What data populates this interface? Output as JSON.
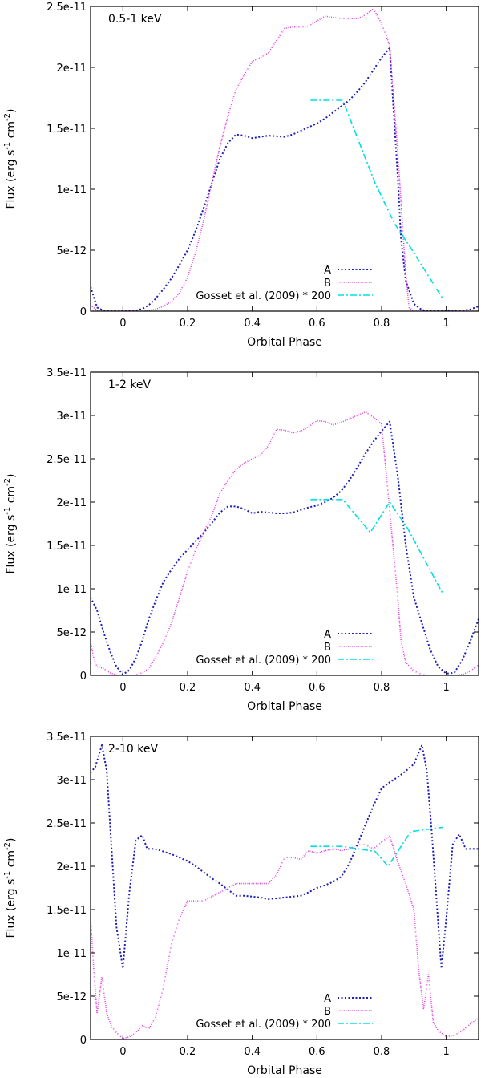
{
  "figure": {
    "xlabel": "Orbital Phase",
    "ylabel_parts": [
      "Flux (erg s",
      "-1",
      " cm",
      "-2",
      ")"
    ]
  },
  "chart_data": [
    {
      "type": "line",
      "title": "0.5-1 keV",
      "xlabel": "Orbital Phase",
      "ylabel": "Flux (erg s^-1 cm^-2)",
      "xlim": [
        -0.1,
        1.1
      ],
      "ylim": [
        0,
        2.5e-11
      ],
      "xticks": [
        0,
        0.2,
        0.4,
        0.6,
        0.8,
        1
      ],
      "xtick_labels": [
        "0",
        "0.2",
        "0.4",
        "0.6",
        "0.8",
        "1"
      ],
      "yticks": [
        0,
        5e-12,
        1e-11,
        1.5e-11,
        2e-11,
        2.5e-11
      ],
      "ytick_labels": [
        "0",
        "5e-12",
        "1e-11",
        "1.5e-11",
        "2e-11",
        "2.5e-11"
      ],
      "legend_position": "bottom-right",
      "series": [
        {
          "name": "A",
          "color": "#1f1fb4",
          "dash": "2,2.5",
          "x": [
            -0.1,
            -0.08,
            -0.06,
            -0.04,
            -0.02,
            0,
            0.02,
            0.04,
            0.06,
            0.08,
            0.1,
            0.125,
            0.15,
            0.175,
            0.2,
            0.225,
            0.25,
            0.275,
            0.3,
            0.325,
            0.35,
            0.375,
            0.4,
            0.425,
            0.45,
            0.475,
            0.5,
            0.525,
            0.55,
            0.575,
            0.6,
            0.625,
            0.65,
            0.675,
            0.7,
            0.725,
            0.75,
            0.775,
            0.8,
            0.825,
            0.85,
            0.86,
            0.875,
            0.9,
            0.925,
            0.95,
            0.975,
            1,
            1.025,
            1.05,
            1.075,
            1.1
          ],
          "y": [
            2e-12,
            3e-13,
            5e-14,
            0,
            0,
            0,
            0,
            5e-14,
            2e-13,
            5e-13,
            1e-12,
            1.8e-12,
            2.7e-12,
            3.8e-12,
            5e-12,
            6.6e-12,
            8.5e-12,
            1.05e-11,
            1.25e-11,
            1.38e-11,
            1.45e-11,
            1.44e-11,
            1.42e-11,
            1.43e-11,
            1.44e-11,
            1.435e-11,
            1.43e-11,
            1.45e-11,
            1.48e-11,
            1.51e-11,
            1.54e-11,
            1.58e-11,
            1.63e-11,
            1.68e-11,
            1.73e-11,
            1.8e-11,
            1.88e-11,
            1.98e-11,
            2.08e-11,
            2.16e-11,
            1.1e-11,
            6e-12,
            2.5e-12,
            6e-13,
            1e-13,
            0,
            0,
            0,
            0,
            5e-14,
            1.5e-13,
            4e-13
          ]
        },
        {
          "name": "B",
          "color": "#e040e0",
          "dash": "1,1.6",
          "x": [
            -0.1,
            -0.08,
            -0.06,
            -0.04,
            -0.02,
            0,
            0.02,
            0.04,
            0.06,
            0.08,
            0.1,
            0.125,
            0.15,
            0.175,
            0.2,
            0.225,
            0.25,
            0.275,
            0.3,
            0.325,
            0.35,
            0.375,
            0.4,
            0.425,
            0.45,
            0.475,
            0.5,
            0.525,
            0.55,
            0.575,
            0.6,
            0.625,
            0.65,
            0.675,
            0.7,
            0.725,
            0.75,
            0.775,
            0.8,
            0.825,
            0.85,
            0.875,
            0.885,
            0.9,
            0.925,
            0.95,
            0.975,
            1,
            1.025,
            1.05,
            1.075,
            1.1
          ],
          "y": [
            5e-13,
            5e-14,
            0,
            0,
            0,
            0,
            0,
            0,
            0,
            5e-14,
            1.5e-13,
            4e-13,
            8e-13,
            1.5e-12,
            2.8e-12,
            4.8e-12,
            7.5e-12,
            1.05e-11,
            1.35e-11,
            1.6e-11,
            1.82e-11,
            1.94e-11,
            2.05e-11,
            2.08e-11,
            2.12e-11,
            2.22e-11,
            2.32e-11,
            2.33e-11,
            2.33e-11,
            2.34e-11,
            2.38e-11,
            2.42e-11,
            2.41e-11,
            2.4e-11,
            2.4e-11,
            2.4e-11,
            2.43e-11,
            2.48e-11,
            2.36e-11,
            2.18e-11,
            1.3e-11,
            3e-12,
            3e-13,
            0,
            0,
            0,
            0,
            0,
            0,
            0,
            0,
            0
          ]
        },
        {
          "name": "Gosset et al. (2009) * 200",
          "color": "#00e0e0",
          "dash": "8,3,2,3",
          "x": [
            0.58,
            0.68,
            0.78,
            0.84,
            0.89,
            0.99
          ],
          "y": [
            1.73e-11,
            1.73e-11,
            1.05e-11,
            7.2e-12,
            5.2e-12,
            1e-12
          ]
        }
      ]
    },
    {
      "type": "line",
      "title": "1-2 keV",
      "xlabel": "Orbital Phase",
      "ylabel": "Flux (erg s^-1 cm^-2)",
      "xlim": [
        -0.1,
        1.1
      ],
      "ylim": [
        0,
        3.5e-11
      ],
      "xticks": [
        0,
        0.2,
        0.4,
        0.6,
        0.8,
        1
      ],
      "xtick_labels": [
        "0",
        "0.2",
        "0.4",
        "0.6",
        "0.8",
        "1"
      ],
      "yticks": [
        0,
        5e-12,
        1e-11,
        1.5e-11,
        2e-11,
        2.5e-11,
        3e-11,
        3.5e-11
      ],
      "ytick_labels": [
        "0",
        "5e-12",
        "1e-11",
        "1.5e-11",
        "2e-11",
        "2.5e-11",
        "3e-11",
        "3.5e-11"
      ],
      "legend_position": "bottom-right",
      "series": [
        {
          "name": "A",
          "color": "#1f1fb4",
          "dash": "2,2.5",
          "x": [
            -0.1,
            -0.08,
            -0.06,
            -0.04,
            -0.02,
            0,
            0.02,
            0.04,
            0.06,
            0.08,
            0.1,
            0.125,
            0.15,
            0.175,
            0.2,
            0.225,
            0.25,
            0.275,
            0.3,
            0.325,
            0.35,
            0.375,
            0.4,
            0.425,
            0.45,
            0.475,
            0.5,
            0.525,
            0.55,
            0.575,
            0.6,
            0.625,
            0.65,
            0.675,
            0.7,
            0.725,
            0.75,
            0.775,
            0.8,
            0.825,
            0.85,
            0.875,
            0.9,
            0.925,
            0.95,
            0.975,
            1,
            1.025,
            1.05,
            1.075,
            1.1
          ],
          "y": [
            9e-12,
            7.5e-12,
            5e-12,
            2.8e-12,
            1e-12,
            1e-13,
            6e-13,
            2e-12,
            4e-12,
            6.5e-12,
            8.5e-12,
            1.08e-11,
            1.22e-11,
            1.35e-11,
            1.45e-11,
            1.55e-11,
            1.65e-11,
            1.76e-11,
            1.88e-11,
            1.95e-11,
            1.95e-11,
            1.92e-11,
            1.87e-11,
            1.89e-11,
            1.88e-11,
            1.87e-11,
            1.87e-11,
            1.88e-11,
            1.91e-11,
            1.94e-11,
            1.96e-11,
            2e-11,
            2.05e-11,
            2.13e-11,
            2.25e-11,
            2.4e-11,
            2.56e-11,
            2.7e-11,
            2.82e-11,
            2.93e-11,
            2.3e-11,
            1.5e-11,
            9e-12,
            6e-12,
            3e-12,
            1e-12,
            2e-13,
            3e-13,
            1.8e-12,
            4e-12,
            6.5e-12
          ]
        },
        {
          "name": "B",
          "color": "#e040e0",
          "dash": "1,1.6",
          "x": [
            -0.1,
            -0.09,
            -0.08,
            -0.06,
            -0.04,
            -0.02,
            0,
            0.02,
            0.04,
            0.06,
            0.08,
            0.1,
            0.125,
            0.15,
            0.175,
            0.2,
            0.225,
            0.25,
            0.275,
            0.3,
            0.325,
            0.35,
            0.375,
            0.4,
            0.425,
            0.45,
            0.475,
            0.5,
            0.525,
            0.55,
            0.575,
            0.6,
            0.625,
            0.65,
            0.675,
            0.7,
            0.725,
            0.75,
            0.775,
            0.8,
            0.825,
            0.85,
            0.86,
            0.875,
            0.9,
            0.925,
            0.95,
            0.975,
            1,
            1.025,
            1.05,
            1.075,
            1.1
          ],
          "y": [
            3.8e-12,
            2e-12,
            1e-12,
            8e-13,
            3e-13,
            5e-14,
            0,
            0,
            5e-14,
            3e-13,
            8e-13,
            2e-12,
            3.8e-12,
            6e-12,
            9e-12,
            1.2e-11,
            1.45e-11,
            1.65e-11,
            1.85e-11,
            2.1e-11,
            2.25e-11,
            2.38e-11,
            2.45e-11,
            2.5e-11,
            2.54e-11,
            2.65e-11,
            2.84e-11,
            2.83e-11,
            2.8e-11,
            2.82e-11,
            2.87e-11,
            2.94e-11,
            2.93e-11,
            2.89e-11,
            2.92e-11,
            2.96e-11,
            3e-11,
            3.04e-11,
            2.98e-11,
            2.9e-11,
            1.9e-11,
            9e-12,
            4e-12,
            1.5e-12,
            5e-13,
            1e-13,
            0,
            0,
            0,
            0,
            1e-13,
            5e-13,
            1.2e-12
          ]
        },
        {
          "name": "Gosset et al. (2009) * 200",
          "color": "#00e0e0",
          "dash": "8,3,2,3",
          "x": [
            0.58,
            0.68,
            0.765,
            0.825,
            0.88,
            0.99
          ],
          "y": [
            2.03e-11,
            2.03e-11,
            1.65e-11,
            2e-11,
            1.7e-11,
            9.4e-12
          ]
        }
      ]
    },
    {
      "type": "line",
      "title": "2-10 keV",
      "xlabel": "Orbital Phase",
      "ylabel": "Flux (erg s^-1 cm^-2)",
      "xlim": [
        -0.1,
        1.1
      ],
      "ylim": [
        0,
        3.5e-11
      ],
      "xticks": [
        0,
        0.2,
        0.4,
        0.6,
        0.8,
        1
      ],
      "xtick_labels": [
        "0",
        "0.2",
        "0.4",
        "0.6",
        "0.8",
        "1"
      ],
      "yticks": [
        0,
        5e-12,
        1e-11,
        1.5e-11,
        2e-11,
        2.5e-11,
        3e-11,
        3.5e-11
      ],
      "ytick_labels": [
        "0",
        "5e-12",
        "1e-11",
        "1.5e-11",
        "2e-11",
        "2.5e-11",
        "3e-11",
        "3.5e-11"
      ],
      "legend_position": "bottom-right",
      "series": [
        {
          "name": "A",
          "color": "#1f1fb4",
          "dash": "2,2.5",
          "x": [
            -0.1,
            -0.085,
            -0.065,
            -0.05,
            -0.035,
            -0.02,
            0,
            0.02,
            0.04,
            0.06,
            0.075,
            0.1,
            0.125,
            0.15,
            0.175,
            0.2,
            0.225,
            0.25,
            0.275,
            0.3,
            0.325,
            0.35,
            0.375,
            0.4,
            0.425,
            0.45,
            0.475,
            0.5,
            0.525,
            0.55,
            0.575,
            0.6,
            0.625,
            0.65,
            0.675,
            0.7,
            0.725,
            0.75,
            0.775,
            0.8,
            0.825,
            0.85,
            0.875,
            0.9,
            0.925,
            0.94,
            0.955,
            0.97,
            0.985,
            1,
            1.02,
            1.04,
            1.06,
            1.08,
            1.1
          ],
          "y": [
            3.08e-11,
            3.15e-11,
            3.4e-11,
            3.1e-11,
            2.2e-11,
            1.3e-11,
            8.2e-12,
            1.7e-11,
            2.3e-11,
            2.36e-11,
            2.2e-11,
            2.2e-11,
            2.17e-11,
            2.14e-11,
            2.1e-11,
            2.06e-11,
            2e-11,
            1.93e-11,
            1.86e-11,
            1.8e-11,
            1.73e-11,
            1.66e-11,
            1.66e-11,
            1.65e-11,
            1.64e-11,
            1.62e-11,
            1.63e-11,
            1.64e-11,
            1.65e-11,
            1.66e-11,
            1.7e-11,
            1.75e-11,
            1.78e-11,
            1.82e-11,
            1.88e-11,
            2.03e-11,
            2.25e-11,
            2.48e-11,
            2.7e-11,
            2.9e-11,
            2.97e-11,
            3.03e-11,
            3.1e-11,
            3.18e-11,
            3.4e-11,
            3.1e-11,
            2.4e-11,
            1.6e-11,
            8.2e-12,
            1.4e-11,
            2.25e-11,
            2.37e-11,
            2.2e-11,
            2.2e-11,
            2.2e-11
          ]
        },
        {
          "name": "B",
          "color": "#e040e0",
          "dash": "1,1.6",
          "x": [
            -0.1,
            -0.09,
            -0.08,
            -0.065,
            -0.05,
            -0.035,
            -0.02,
            0,
            0.02,
            0.04,
            0.06,
            0.08,
            0.1,
            0.125,
            0.15,
            0.175,
            0.2,
            0.225,
            0.25,
            0.275,
            0.3,
            0.325,
            0.35,
            0.375,
            0.4,
            0.425,
            0.45,
            0.475,
            0.5,
            0.525,
            0.55,
            0.575,
            0.6,
            0.625,
            0.65,
            0.675,
            0.7,
            0.725,
            0.75,
            0.775,
            0.8,
            0.825,
            0.85,
            0.875,
            0.9,
            0.915,
            0.93,
            0.945,
            0.96,
            0.975,
            1,
            1.025,
            1.05,
            1.075,
            1.1
          ],
          "y": [
            1.4e-11,
            8e-12,
            3e-12,
            7.2e-12,
            3e-12,
            1.5e-12,
            8e-13,
            1e-13,
            3e-13,
            8e-13,
            1.6e-12,
            1.2e-12,
            2.5e-12,
            6e-12,
            1.1e-11,
            1.4e-11,
            1.6e-11,
            1.6e-11,
            1.6e-11,
            1.65e-11,
            1.7e-11,
            1.75e-11,
            1.8e-11,
            1.8e-11,
            1.8e-11,
            1.8e-11,
            1.8e-11,
            1.9e-11,
            2.1e-11,
            2.1e-11,
            2.08e-11,
            2.18e-11,
            2.15e-11,
            2.18e-11,
            2.2e-11,
            2.18e-11,
            2.2e-11,
            2.25e-11,
            2.25e-11,
            2.2e-11,
            2.28e-11,
            2.35e-11,
            2.05e-11,
            1.8e-11,
            1.5e-11,
            8e-12,
            3.5e-12,
            7.5e-12,
            2e-12,
            1e-12,
            3e-13,
            5e-13,
            1e-12,
            1.8e-12,
            2.5e-12
          ]
        },
        {
          "name": "Gosset et al. (2009) * 200",
          "color": "#00e0e0",
          "dash": "8,3,2,3",
          "x": [
            0.58,
            0.68,
            0.78,
            0.82,
            0.89,
            0.99
          ],
          "y": [
            2.23e-11,
            2.23e-11,
            2.17e-11,
            2e-11,
            2.4e-11,
            2.45e-11
          ]
        }
      ]
    }
  ]
}
